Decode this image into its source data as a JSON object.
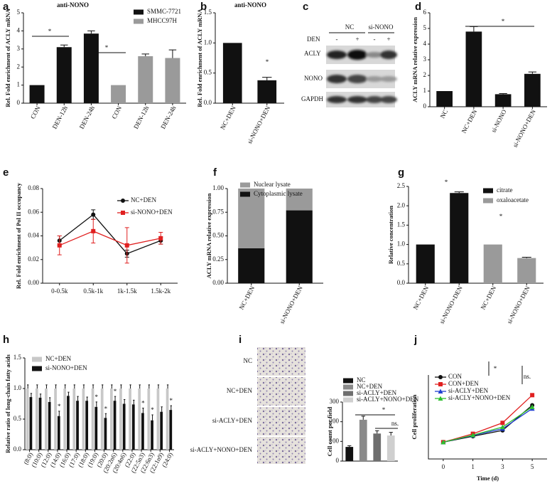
{
  "chart_data": [
    {
      "type": "bar",
      "panel": "a",
      "title": "anti-NONO",
      "y_label": "Rel. Fold enrichment of ACLY mRNA",
      "categories": [
        "CON",
        "DEN-12h",
        "DEN-24h",
        "CON",
        "DEN-12h",
        "DEN-24h"
      ],
      "series": [
        {
          "name": "SMMC-7721",
          "color": "#111111",
          "values": [
            1,
            3.1,
            3.85,
            null,
            null,
            null
          ],
          "errors": [
            null,
            0.12,
            0.15,
            null,
            null,
            null
          ]
        },
        {
          "name": "MHCC97H",
          "color": "#9a9a9a",
          "values": [
            null,
            null,
            null,
            1,
            2.6,
            2.5
          ],
          "errors": [
            null,
            null,
            null,
            null,
            0.12,
            0.45
          ]
        }
      ],
      "ylim": [
        0,
        5
      ],
      "yticks": [
        0,
        1,
        2,
        3,
        4,
        5
      ],
      "legend": "upper right",
      "annotations": [
        "*",
        "*"
      ]
    },
    {
      "type": "bar",
      "panel": "b",
      "title": "anti-NONO",
      "y_label": "Rel. Fold enrichment of ACLY mRNA",
      "categories": [
        "NC+DEN",
        "si-NONO+DEN"
      ],
      "series": [
        {
          "name": null,
          "color": "#111111",
          "values": [
            1,
            0.38
          ],
          "errors": [
            null,
            0.05
          ]
        }
      ],
      "ylim": [
        0,
        1.5
      ],
      "yticks": [
        {
          "value": 0,
          "label": "0.0"
        },
        0.5,
        {
          "value": 1,
          "label": "1.0"
        },
        1.5
      ],
      "annotations": [
        "*"
      ]
    },
    {
      "type": "bar",
      "panel": "d",
      "y_label": "ACLY mRNA relative expression",
      "categories": [
        "NC",
        "NC+DEN",
        "si-NONO",
        "si-NONO+DEN"
      ],
      "series": [
        {
          "name": null,
          "color": "#111111",
          "values": [
            1,
            4.8,
            0.8,
            2.1
          ],
          "errors": [
            null,
            0.32,
            0.04,
            0.12
          ]
        }
      ],
      "ylim": [
        0,
        6
      ],
      "yticks": [
        0,
        1,
        2,
        3,
        4,
        5,
        6
      ],
      "annotations": [
        "*"
      ]
    },
    {
      "type": "line",
      "panel": "e",
      "y_label": "Rel. Fold enrichment of Pol II occupancy",
      "categories": [
        "0-0.5k",
        "0.5k-1k",
        "1k-1.5k",
        "1.5k-2k"
      ],
      "series": [
        {
          "name": "NC+DEN",
          "color": "#111111",
          "marker": "circle",
          "values": [
            0.036,
            0.058,
            0.025,
            0.036
          ],
          "errors": [
            0.004,
            0.004,
            0.003,
            0.003
          ]
        },
        {
          "name": "si-NONO+DEN",
          "color": "#e02020",
          "marker": "square",
          "values": [
            0.032,
            0.044,
            0.032,
            0.038
          ],
          "errors": [
            0.008,
            0.01,
            0.015,
            0.005
          ]
        }
      ],
      "ylim": [
        0,
        0.08
      ],
      "yticks": [
        {
          "value": 0,
          "label": "0.00"
        },
        {
          "value": 0.02,
          "label": "0.02"
        },
        {
          "value": 0.04,
          "label": "0.04"
        },
        {
          "value": 0.06,
          "label": "0.06"
        },
        {
          "value": 0.08,
          "label": "0.08"
        }
      ],
      "legend": "upper right"
    },
    {
      "type": "stacked_bar",
      "panel": "f",
      "y_label": "ACLY mRNA relative expression",
      "categories": [
        "NC+DEN",
        "si-NONO+DEN"
      ],
      "series": [
        {
          "name": "Nuclear lysate",
          "color": "#9a9a9a",
          "values": [
            0.63,
            0.23
          ]
        },
        {
          "name": "Cytoplasmic lysate",
          "color": "#111111",
          "values": [
            0.37,
            0.77
          ]
        }
      ],
      "ylim": [
        0,
        1
      ],
      "yticks": [
        {
          "value": 0,
          "label": "0.00"
        },
        {
          "value": 0.25,
          "label": "0.25"
        },
        {
          "value": 0.5,
          "label": "0.50"
        },
        {
          "value": 0.75,
          "label": "0.75"
        },
        {
          "value": 1,
          "label": "1.00"
        }
      ],
      "legend": "upper left"
    },
    {
      "type": "bar",
      "panel": "g",
      "y_label": "Relative concentration",
      "categories": [
        "NC+DEN",
        "si-NONO+DEN",
        "NC+DEN",
        "si-NONO+DEN"
      ],
      "series": [
        {
          "name": "citrate",
          "color": "#111111",
          "values": [
            1,
            2.33,
            null,
            null
          ],
          "errors": [
            null,
            0.03,
            null,
            null
          ]
        },
        {
          "name": "oxaloacetate",
          "color": "#9a9a9a",
          "values": [
            null,
            null,
            1,
            0.65
          ],
          "errors": [
            null,
            null,
            null,
            0.02
          ]
        }
      ],
      "ylim": [
        0,
        2.5
      ],
      "yticks": [
        {
          "value": 0,
          "label": "0.0"
        },
        0.5,
        {
          "value": 1,
          "label": "1.0"
        },
        1.5,
        {
          "value": 2,
          "label": "2.0"
        },
        2.5
      ],
      "legend": "upper right",
      "annotations": [
        "*",
        "*"
      ]
    },
    {
      "type": "bar",
      "panel": "h",
      "y_label": "Relative ratio of long-chain fatty acids",
      "categories": [
        "(8:0)",
        "(10:0)",
        "(12:0)",
        "(14:0)",
        "(16:0)",
        "(17:0)",
        "(18:0)",
        "(19:0)",
        "(20:0)",
        "(20:2n6)",
        "(20:4n6)",
        "(22:0)",
        "(22:5n3)",
        "(22:6n3)",
        "(22:1n9)",
        "(24:0)"
      ],
      "series": [
        {
          "name": "NC+DEN",
          "color": "#c8c8c8",
          "values": [
            1,
            1,
            1,
            1,
            1,
            1,
            1,
            1,
            1,
            1,
            1,
            1,
            1,
            1,
            1,
            1
          ],
          "errors": [
            0.06,
            0.06,
            0.06,
            0.06,
            0.06,
            0.06,
            0.06,
            0.06,
            0.06,
            0.06,
            0.06,
            0.06,
            0.06,
            0.06,
            0.06,
            0.06
          ]
        },
        {
          "name": "si-NONO+DEN",
          "color": "#111111",
          "values": [
            0.86,
            0.85,
            0.78,
            0.55,
            0.88,
            0.8,
            0.8,
            0.7,
            0.52,
            0.8,
            0.75,
            0.74,
            0.6,
            0.48,
            0.62,
            0.65
          ],
          "errors": [
            0.06,
            0.06,
            0.07,
            0.08,
            0.06,
            0.07,
            0.06,
            0.08,
            0.07,
            0.07,
            0.07,
            0.07,
            0.08,
            0.09,
            0.08,
            0.07
          ]
        }
      ],
      "significance": [
        null,
        null,
        null,
        "*",
        null,
        null,
        null,
        "*",
        "*",
        "*",
        null,
        null,
        "*",
        "*",
        null,
        "*"
      ],
      "ylim": [
        0,
        1.5
      ],
      "yticks": [
        {
          "value": 0,
          "label": "0.0"
        },
        0.5,
        {
          "value": 1,
          "label": "1.0"
        },
        1.5
      ],
      "legend": "upper left"
    },
    {
      "type": "bar",
      "panel": "i",
      "y_label": "Cell count per field",
      "categories": [
        "NC",
        "NC+DEN",
        "si-ACLY+DEN",
        "si-ACLY+NONO+DEN"
      ],
      "series": [
        {
          "name": null,
          "colors": [
            "#111111",
            "#8a8a8a",
            "#6e6e6e",
            "#cfcfcf"
          ],
          "values": [
            72,
            210,
            140,
            130
          ],
          "errors": [
            6,
            18,
            14,
            16
          ]
        }
      ],
      "ylim": [
        0,
        300
      ],
      "yticks": [
        0,
        100,
        200,
        300
      ],
      "legend": "upper left",
      "annotations": [
        "*",
        "ns."
      ]
    },
    {
      "type": "line",
      "panel": "j",
      "y_label": "Cell proliferation",
      "x_label": "Time (d)",
      "categories": [
        "0",
        "1",
        "3",
        "5"
      ],
      "series": [
        {
          "name": "CON",
          "color": "#111111",
          "marker": "circle",
          "values": [
            1,
            1.35,
            1.7,
            3.2
          ]
        },
        {
          "name": "CON+DEN",
          "color": "#e02020",
          "marker": "square",
          "values": [
            1,
            1.5,
            2.15,
            3.8
          ]
        },
        {
          "name": "si-ACLY+DEN",
          "color": "#2040d0",
          "marker": "triangle",
          "values": [
            1,
            1.4,
            1.8,
            3.0
          ]
        },
        {
          "name": "si-ACLY+NONO+DEN",
          "color": "#30c030",
          "marker": "triangle",
          "values": [
            1,
            1.42,
            1.9,
            3.1
          ]
        }
      ],
      "ylim": [
        0,
        5
      ],
      "legend": "upper left",
      "annotations": [
        "*",
        "ns."
      ]
    }
  ],
  "blot": {
    "panel": "c",
    "groups": [
      "NC",
      "si-NONO"
    ],
    "treatment": "DEN",
    "treatment_marks": [
      "-",
      "+",
      "-",
      "+"
    ],
    "rows": [
      "ACLY",
      "NONO",
      "GAPDH"
    ]
  }
}
